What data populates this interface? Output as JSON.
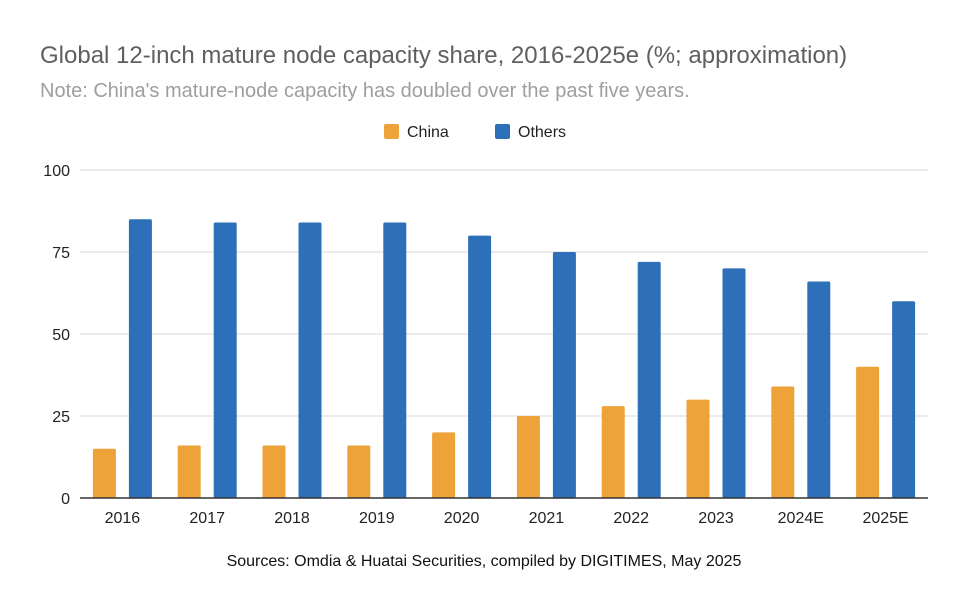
{
  "title": "Global 12-inch mature node capacity share, 2016-2025e (%; approximation)",
  "subtitle": "Note: China's mature-node capacity has doubled over the past five years.",
  "source": "Sources: Omdia & Huatai Securities, compiled by DIGITIMES, May 2025",
  "colors": {
    "China": "#eda23a",
    "Others": "#2d6fb8",
    "grid": "#d9d9d9",
    "axis": "#333333"
  },
  "chart_data": {
    "type": "bar",
    "categories": [
      "2016",
      "2017",
      "2018",
      "2019",
      "2020",
      "2021",
      "2022",
      "2023",
      "2024E",
      "2025E"
    ],
    "series": [
      {
        "name": "China",
        "values": [
          15,
          16,
          16,
          16,
          20,
          25,
          28,
          30,
          34,
          40
        ]
      },
      {
        "name": "Others",
        "values": [
          85,
          84,
          84,
          84,
          80,
          75,
          72,
          70,
          66,
          60
        ]
      }
    ],
    "ylim": [
      0,
      100
    ],
    "yticks": [
      0,
      25,
      50,
      75,
      100
    ],
    "grid": true,
    "legend": "top-center"
  }
}
